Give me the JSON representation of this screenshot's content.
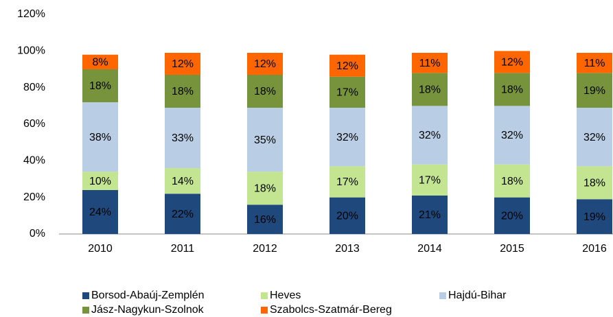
{
  "chart_data": {
    "type": "stacked_bar",
    "categories": [
      "2010",
      "2011",
      "2012",
      "2013",
      "2014",
      "2015",
      "2016"
    ],
    "series": [
      {
        "name": "Borsod-Abaúj-Zemplén",
        "color": "#1f497d",
        "values": [
          24,
          22,
          16,
          20,
          21,
          20,
          19
        ],
        "value_labels": [
          "24%",
          "22%",
          "16%",
          "20%",
          "21%",
          "20%",
          "19%"
        ]
      },
      {
        "name": "Heves",
        "color": "#c3e591",
        "values": [
          10,
          14,
          18,
          17,
          17,
          18,
          18
        ],
        "value_labels": [
          "10%",
          "14%",
          "18%",
          "17%",
          "17%",
          "18%",
          "18%"
        ]
      },
      {
        "name": "Hajdú-Bihar",
        "color": "#b9cde5",
        "values": [
          38,
          33,
          35,
          32,
          32,
          32,
          32
        ],
        "value_labels": [
          "38%",
          "33%",
          "35%",
          "32%",
          "32%",
          "32%",
          "32%"
        ]
      },
      {
        "name": "Jász-Nagykun-Szolnok",
        "color": "#77933c",
        "values": [
          18,
          18,
          18,
          17,
          18,
          18,
          19
        ],
        "value_labels": [
          "18%",
          "18%",
          "18%",
          "17%",
          "18%",
          "18%",
          "19%"
        ]
      },
      {
        "name": "Szabolcs-Szatmár-Bereg",
        "color": "#ff6600",
        "values": [
          8,
          12,
          12,
          12,
          11,
          12,
          11
        ],
        "value_labels": [
          "8%",
          "12%",
          "12%",
          "12%",
          "11%",
          "12%",
          "11%"
        ]
      }
    ],
    "ylim": [
      0,
      120
    ],
    "yticks": [
      {
        "value": 0,
        "label": "0%"
      },
      {
        "value": 20,
        "label": "20%"
      },
      {
        "value": 40,
        "label": "40%"
      },
      {
        "value": 60,
        "label": "60%"
      },
      {
        "value": 80,
        "label": "80%"
      },
      {
        "value": 100,
        "label": "100%"
      },
      {
        "value": 120,
        "label": "120%"
      }
    ],
    "grid": false
  }
}
